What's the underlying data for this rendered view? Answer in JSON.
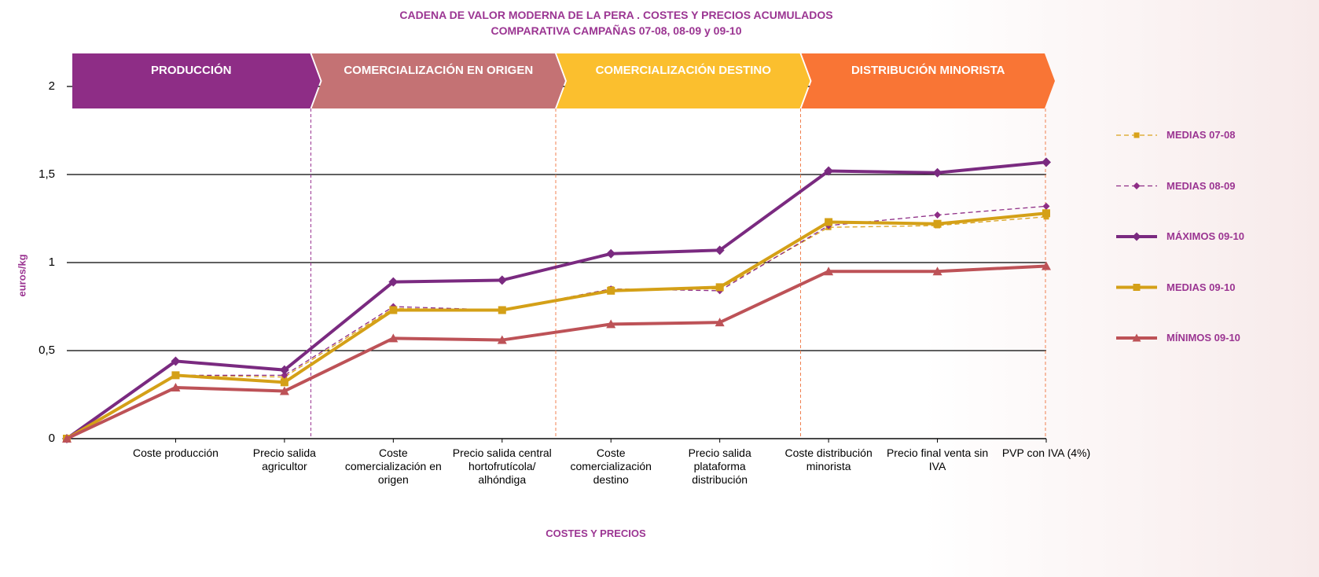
{
  "chart_data": {
    "type": "line",
    "title": "CADENA DE VALOR MODERNA DE LA PERA . COSTES Y PRECIOS ACUMULADOS",
    "subtitle": "COMPARATIVA  CAMPAÑAS  07-08, 08-09 y 09-10",
    "y_label": "euros/kg",
    "x_label": "COSTES Y PRECIOS",
    "phases": [
      {
        "label": "PRODUCCIÓN",
        "color": "#8e2d86"
      },
      {
        "label": "COMERCIALIZACIÓN EN ORIGEN",
        "color": "#c47274"
      },
      {
        "label": "COMERCIALIZACIÓN DESTINO",
        "color": "#fbbf2e"
      },
      {
        "label": "DISTRIBUCIÓN MINORISTA",
        "color": "#f97535"
      }
    ],
    "categories": [
      null,
      "Coste producción",
      "Precio salida agricultor",
      "Coste comercialización en origen",
      "Precio salida central hortofrutícola/ alhóndiga",
      "Coste comercialización destino",
      "Precio salida plataforma distribución",
      "Coste distribución minorista",
      "Precio final venta sin IVA",
      "PVP con IVA (4%)"
    ],
    "ylim": [
      0,
      2
    ],
    "yticks": [
      0,
      {
        "value": 0.5,
        "label": "0,5"
      },
      1,
      {
        "value": 1.5,
        "label": "1,5"
      },
      2
    ],
    "grid": true,
    "legend": "right",
    "series": [
      {
        "name": "MEDIAS 07-08",
        "color": "#d9a21b",
        "dashed": true,
        "marker": "square",
        "values": [
          0,
          0.36,
          0.35,
          0.74,
          0.73,
          0.85,
          0.85,
          1.2,
          1.21,
          1.26
        ]
      },
      {
        "name": "MEDIAS 08-09",
        "color": "#8e2d86",
        "dashed": true,
        "marker": "diamond",
        "values": [
          0,
          0.36,
          0.36,
          0.75,
          0.73,
          0.85,
          0.84,
          1.21,
          1.27,
          1.32
        ]
      },
      {
        "name": "MÁXIMOS 09-10",
        "color": "#7a2a80",
        "dashed": false,
        "marker": "diamond",
        "values": [
          0,
          0.44,
          0.39,
          0.89,
          0.9,
          1.05,
          1.07,
          1.52,
          1.51,
          1.57
        ]
      },
      {
        "name": "MEDIAS 09-10",
        "color": "#d4a017",
        "dashed": false,
        "marker": "square",
        "values": [
          0,
          0.36,
          0.32,
          0.73,
          0.73,
          0.84,
          0.86,
          1.23,
          1.22,
          1.28
        ]
      },
      {
        "name": "MÍNIMOS 09-10",
        "color": "#bd5257",
        "dashed": false,
        "marker": "triangle",
        "values": [
          0,
          0.29,
          0.27,
          0.57,
          0.56,
          0.65,
          0.66,
          0.95,
          0.95,
          0.98
        ]
      }
    ]
  }
}
